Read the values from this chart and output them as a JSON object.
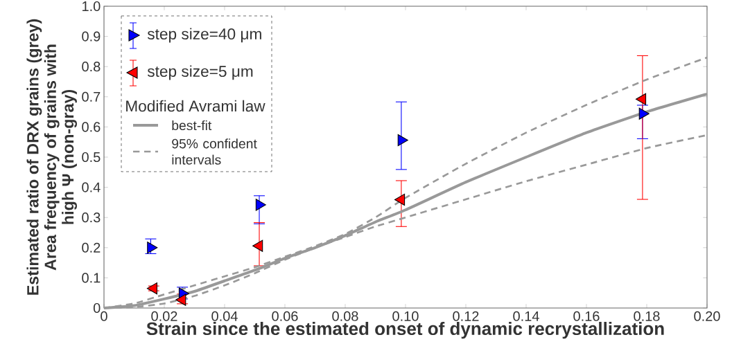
{
  "chart_data": {
    "type": "scatter",
    "xlabel": "Strain since the estimated onset of dynamic recrystallization",
    "ylabel": "Estimated ratio of DRX grains (grey) Area frequency of grains with high Ψ (non-gray)",
    "legend_title": "Modified Avrami law",
    "legend": "top left",
    "xlim": [
      0,
      0.2
    ],
    "ylim": [
      0,
      1.0
    ],
    "xticks": [
      0,
      0.02,
      0.04,
      0.06,
      0.08,
      {
        "value": 0.1,
        "label": "0.10"
      },
      0.12,
      0.14,
      0.16,
      0.18,
      {
        "value": 0.2,
        "label": "0.20"
      }
    ],
    "yticks": [
      0,
      0.1,
      0.2,
      0.3,
      0.4,
      0.5,
      0.6,
      0.7,
      0.8,
      0.9,
      {
        "value": 1.0,
        "label": "1.0"
      }
    ],
    "series": [
      {
        "name": "step size=40 μm",
        "color": "#0000ff",
        "marker": "triangle",
        "x": [
          0.0155,
          0.026,
          0.0515,
          0.0986,
          0.1786
        ],
        "values": [
          0.2,
          0.048,
          0.342,
          0.556,
          0.644
        ],
        "errors": [
          [
            0.18,
            0.229
          ],
          [
            0.03,
            0.069
          ],
          [
            0.279,
            0.372
          ],
          [
            0.459,
            0.683
          ],
          [
            0.561,
            0.672
          ]
        ]
      },
      {
        "name": "step size=5 μm",
        "color": "#ff0000",
        "marker": "triangle",
        "x": [
          0.0165,
          0.026,
          0.0515,
          0.0986,
          0.1786
        ],
        "values": [
          0.065,
          0.027,
          0.206,
          0.359,
          0.692
        ],
        "errors": [
          [
            0.057,
            0.073
          ],
          [
            0.014,
            0.046
          ],
          [
            0.14,
            0.283
          ],
          [
            0.27,
            0.422
          ],
          [
            0.36,
            0.836
          ]
        ]
      },
      {
        "name": "best-fit",
        "type": "line",
        "color": "#999999",
        "line_style": "solid",
        "marker": "none",
        "x": [
          0,
          0.01,
          0.02,
          0.03,
          0.04,
          0.05,
          0.06,
          0.07,
          0.08,
          0.09,
          0.1,
          0.12,
          0.14,
          0.16,
          0.18,
          0.2
        ],
        "values": [
          0,
          0.008,
          0.03,
          0.055,
          0.09,
          0.125,
          0.165,
          0.2,
          0.24,
          0.285,
          0.325,
          0.417,
          0.5,
          0.581,
          0.65,
          0.709
        ]
      },
      {
        "name": "95% confident intervals",
        "type": "line",
        "color": "#999999",
        "line_style": "dashed",
        "marker": "none",
        "x": [
          0,
          0.01,
          0.02,
          0.03,
          0.04,
          0.05,
          0.06,
          0.07,
          0.08,
          0.09,
          0.1,
          0.12,
          0.14,
          0.16,
          0.18,
          0.2
        ],
        "values": [
          0,
          0.015,
          0.045,
          0.075,
          0.105,
          0.135,
          0.17,
          0.205,
          0.245,
          0.3,
          0.365,
          0.478,
          0.581,
          0.673,
          0.757,
          0.83
        ]
      },
      {
        "type": "line",
        "color": "#999999",
        "line_style": "dashed",
        "marker": "none",
        "x": [
          0,
          0.01,
          0.02,
          0.03,
          0.04,
          0.05,
          0.06,
          0.07,
          0.08,
          0.09,
          0.1,
          0.12,
          0.14,
          0.16,
          0.18,
          0.2
        ],
        "values": [
          0,
          0.003,
          0.015,
          0.04,
          0.075,
          0.115,
          0.16,
          0.2,
          0.235,
          0.27,
          0.3,
          0.36,
          0.42,
          0.475,
          0.53,
          0.573
        ]
      }
    ]
  }
}
